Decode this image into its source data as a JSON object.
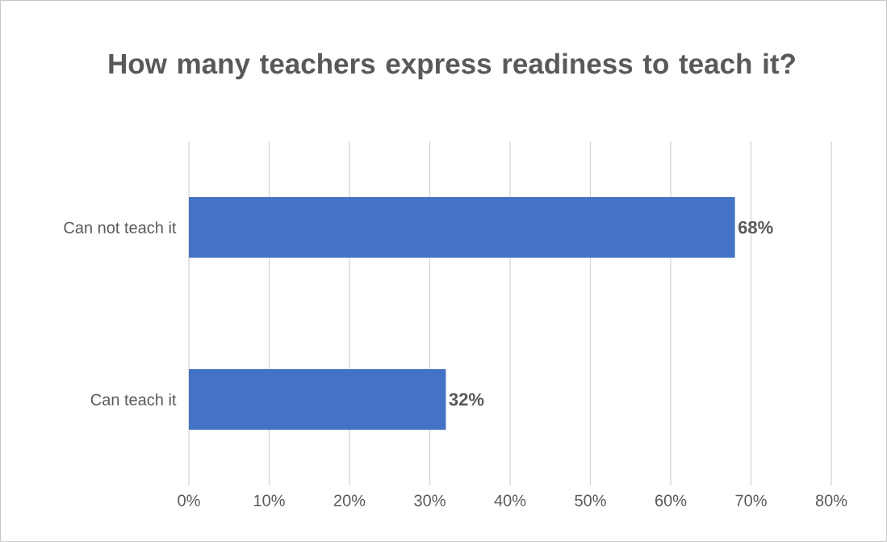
{
  "chart_data": {
    "type": "bar",
    "orientation": "horizontal",
    "title": "How many teachers express readiness to teach it?",
    "categories": [
      "Can not teach it",
      "Can teach it"
    ],
    "values": [
      68,
      32
    ],
    "value_labels": [
      "68%",
      "32%"
    ],
    "color": "#4472c4",
    "xlim": [
      0,
      80
    ],
    "xticks": [
      {
        "value": 0,
        "label": "0%"
      },
      {
        "value": 10,
        "label": "10%"
      },
      {
        "value": 20,
        "label": "20%"
      },
      {
        "value": 30,
        "label": "30%"
      },
      {
        "value": 40,
        "label": "40%"
      },
      {
        "value": 50,
        "label": "50%"
      },
      {
        "value": 60,
        "label": "60%"
      },
      {
        "value": 70,
        "label": "70%"
      },
      {
        "value": 80,
        "label": "80%"
      }
    ],
    "grid": "x"
  }
}
